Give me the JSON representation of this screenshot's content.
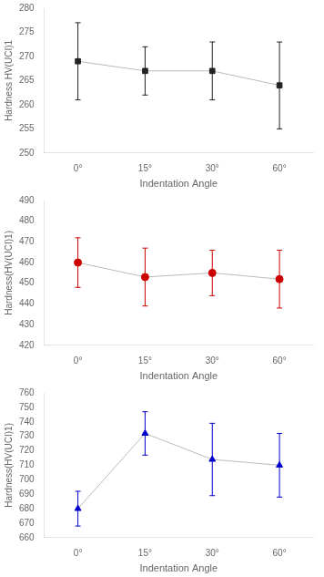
{
  "chart_data": [
    {
      "type": "line",
      "x_label": "Indentation Angle",
      "y_label": "Hardness HV(UCI)1",
      "categories": [
        "0°",
        "15°",
        "30°",
        "60°"
      ],
      "series": [
        {
          "type": "line",
          "color": "#bbbbbb",
          "marker": "none",
          "line_style": "solid",
          "values": [
            269,
            267,
            267,
            264
          ]
        },
        {
          "type": "scatter",
          "color": "#222222",
          "marker": "square",
          "values": [
            269,
            267,
            267,
            264
          ],
          "yerr": [
            8,
            5,
            6,
            9
          ]
        }
      ],
      "ylim": [
        250,
        280
      ],
      "yticks": [
        250,
        255,
        260,
        265,
        270,
        275,
        280
      ],
      "grid": false,
      "legend": false
    },
    {
      "type": "line",
      "x_label": "Indentation Angle",
      "y_label": "Hardness(HV(UCI)1)",
      "categories": [
        "0°",
        "15°",
        "30°",
        "60°"
      ],
      "series": [
        {
          "type": "line",
          "color": "#bbbbbb",
          "marker": "none",
          "line_style": "solid",
          "values": [
            460,
            453,
            455,
            452
          ]
        },
        {
          "type": "scatter",
          "color": "#cc0000",
          "marker": "circle",
          "values": [
            460,
            453,
            455,
            452
          ],
          "yerr": [
            12,
            14,
            11,
            14
          ]
        }
      ],
      "ylim": [
        420,
        490
      ],
      "yticks": [
        420,
        430,
        440,
        450,
        460,
        470,
        480,
        490
      ],
      "grid": false,
      "legend": false
    },
    {
      "type": "line",
      "x_label": "Indentation Angle",
      "y_label": "Hardness(HV(UCI)1)",
      "categories": [
        "0°",
        "15°",
        "30°",
        "60°"
      ],
      "series": [
        {
          "type": "line",
          "color": "#bbbbbb",
          "marker": "none",
          "line_style": "solid",
          "values": [
            680,
            732,
            714,
            710
          ]
        },
        {
          "type": "scatter",
          "color": "#0000cc",
          "marker": "triangle",
          "values": [
            680,
            732,
            714,
            710
          ],
          "yerr": [
            12,
            15,
            25,
            22
          ]
        }
      ],
      "ylim": [
        660,
        760
      ],
      "yticks": [
        660,
        670,
        680,
        690,
        700,
        710,
        720,
        730,
        740,
        750,
        760
      ],
      "grid": false,
      "legend": false
    }
  ]
}
